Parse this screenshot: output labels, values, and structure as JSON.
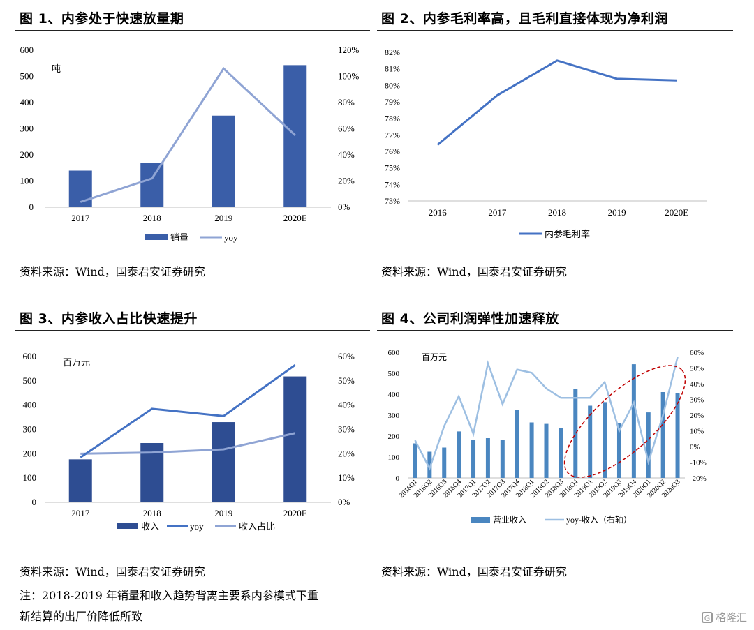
{
  "fig1": {
    "title": "图 1、内参处于快速放量期",
    "source": "资料来源：Wind，国泰君安证券研究",
    "unit_label": "吨",
    "chart_data": {
      "type": "bar",
      "categories": [
        "2017",
        "2018",
        "2019",
        "2020E"
      ],
      "series": [
        {
          "name": "销量",
          "kind": "bar",
          "axis": "left",
          "values": [
            140,
            170,
            350,
            543
          ]
        },
        {
          "name": "yoy",
          "kind": "line",
          "axis": "right",
          "values": [
            4,
            22,
            106,
            55
          ]
        }
      ],
      "ylim": [
        0,
        600
      ],
      "yticks": [
        "0",
        "100",
        "200",
        "300",
        "400",
        "500",
        "600"
      ],
      "y2lim": [
        0,
        120
      ],
      "y2ticks": [
        "0%",
        "20%",
        "40%",
        "60%",
        "80%",
        "100%",
        "120%"
      ],
      "legend": "bottom",
      "colors": {
        "bar": "#3a5ea8",
        "line": "#8fa4d4"
      }
    }
  },
  "fig2": {
    "title": "图 2、内参毛利率高，且毛利直接体现为净利润",
    "source": "资料来源：Wind，国泰君安证券研究",
    "chart_data": {
      "type": "line",
      "categories": [
        "2016",
        "2017",
        "2018",
        "2019",
        "2020E"
      ],
      "series": [
        {
          "name": "内参毛利率",
          "values": [
            76.4,
            79.4,
            81.5,
            80.4,
            80.3
          ]
        }
      ],
      "ylim": [
        73,
        82
      ],
      "yticks": [
        "73%",
        "74%",
        "75%",
        "76%",
        "77%",
        "78%",
        "79%",
        "80%",
        "81%",
        "82%"
      ],
      "legend": "bottom",
      "colors": {
        "line": "#4472c4"
      }
    }
  },
  "fig3": {
    "title": "图 3、内参收入占比快速提升",
    "source": "资料来源：Wind，国泰君安证券研究",
    "note_line1": "注：2018-2019 年销量和收入趋势背离主要系内参模式下重",
    "note_line2": "新结算的出厂价降低所致",
    "unit_label": "百万元",
    "chart_data": {
      "type": "bar",
      "categories": [
        "2017",
        "2018",
        "2019",
        "2020E"
      ],
      "series": [
        {
          "name": "收入",
          "kind": "bar",
          "axis": "left",
          "values": [
            177,
            244,
            330,
            518
          ]
        },
        {
          "name": "yoy",
          "kind": "line",
          "axis": "right",
          "values": [
            18.5,
            38.5,
            35.5,
            56.5
          ]
        },
        {
          "name": "收入占比",
          "kind": "line",
          "axis": "right",
          "values": [
            20,
            20.5,
            21.8,
            28.5
          ]
        }
      ],
      "ylim": [
        0,
        600
      ],
      "yticks": [
        "0",
        "100",
        "200",
        "300",
        "400",
        "500",
        "600"
      ],
      "y2lim": [
        0,
        60
      ],
      "y2ticks": [
        "0%",
        "10%",
        "20%",
        "30%",
        "40%",
        "50%",
        "60%"
      ],
      "legend": "bottom",
      "colors": {
        "bar": "#2e4d92",
        "yoy": "#4472c4",
        "share": "#8fa4d4"
      }
    }
  },
  "fig4": {
    "title": "图 4、公司利润弹性加速释放",
    "source": "资料来源：Wind，国泰君安证券研究",
    "unit_label": "百万元",
    "chart_data": {
      "type": "bar",
      "categories": [
        "2016Q1",
        "2016Q2",
        "2016Q3",
        "2016Q4",
        "2017Q1",
        "2017Q2",
        "2017Q3",
        "2017Q4",
        "2018Q1",
        "2018Q2",
        "2018Q3",
        "2018Q4",
        "2019Q1",
        "2019Q2",
        "2019Q3",
        "2019Q4",
        "2020Q1",
        "2020Q2",
        "2020Q3"
      ],
      "series": [
        {
          "name": "营业收入",
          "kind": "bar",
          "axis": "left",
          "values": [
            165,
            125,
            145,
            222,
            183,
            190,
            182,
            326,
            265,
            258,
            238,
            425,
            345,
            362,
            262,
            543,
            313,
            410,
            405
          ]
        },
        {
          "name": "yoy-收入（右轴）",
          "kind": "line",
          "axis": "right",
          "values": [
            4,
            -14,
            13,
            32,
            8,
            53,
            27,
            49,
            47,
            37,
            31,
            31,
            31,
            41,
            10,
            28,
            -10,
            20,
            57
          ]
        }
      ],
      "ylim": [
        0,
        600
      ],
      "yticks": [
        "0",
        "100",
        "200",
        "300",
        "400",
        "500",
        "600"
      ],
      "y2lim": [
        -20,
        60
      ],
      "y2ticks": [
        "-20%",
        "-10%",
        "0%",
        "10%",
        "20%",
        "30%",
        "40%",
        "50%",
        "60%"
      ],
      "legend": "bottom",
      "colors": {
        "bar": "#4a86c0",
        "line": "#9dbfe2",
        "ellipse": "#c00000"
      }
    }
  },
  "watermark": {
    "text": "格隆汇",
    "icon": "G"
  }
}
